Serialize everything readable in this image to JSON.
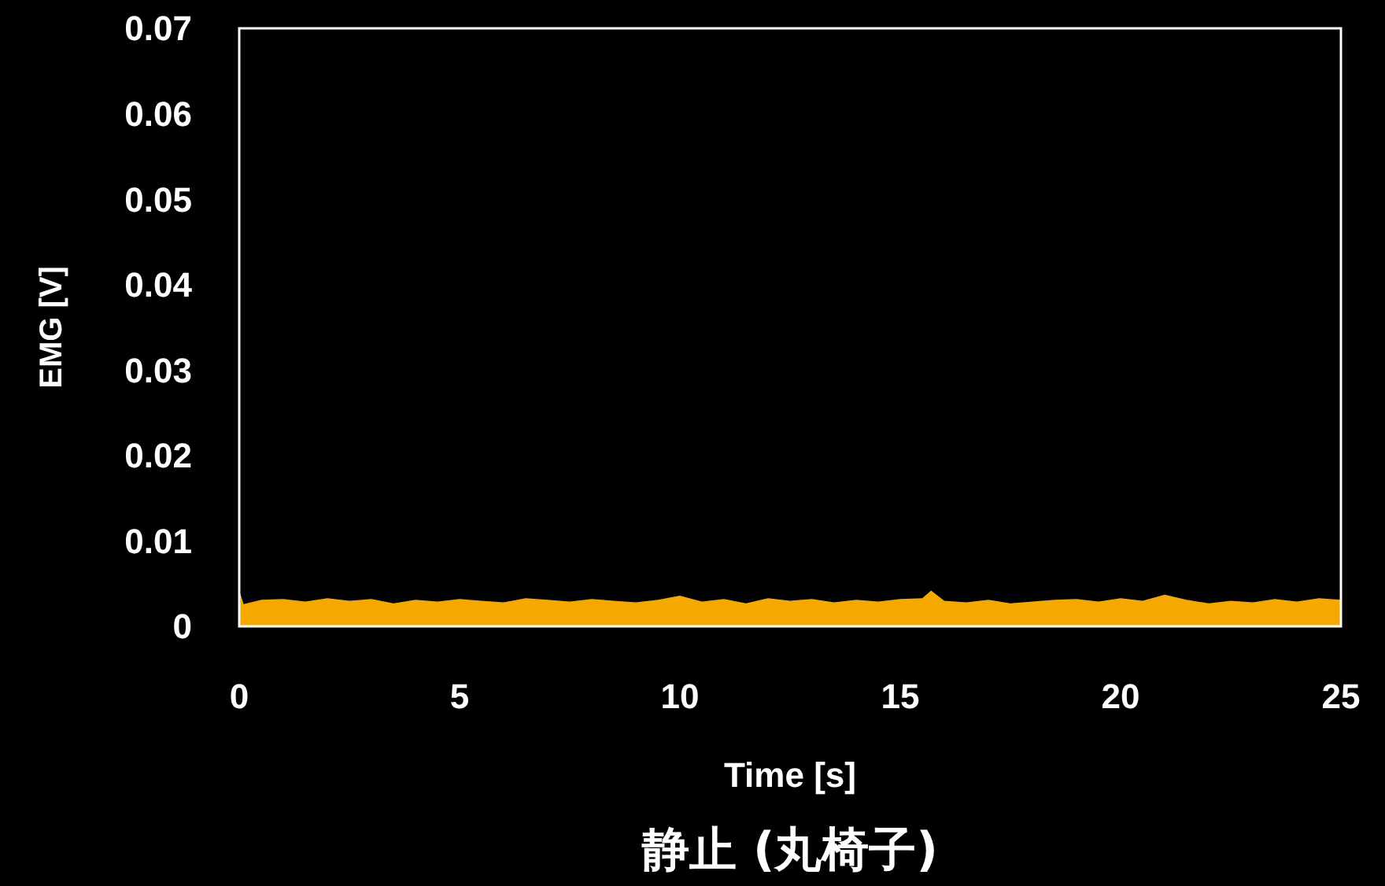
{
  "chart_data": {
    "type": "area",
    "title": "静止 (丸椅子)",
    "xlabel": "Time [s]",
    "ylabel": "EMG [V]",
    "x": [
      0,
      0.1,
      0.5,
      1,
      1.5,
      2,
      2.5,
      3,
      3.5,
      4,
      4.5,
      5,
      5.5,
      6,
      6.5,
      7,
      7.5,
      8,
      8.5,
      9,
      9.5,
      10,
      10.5,
      11,
      11.5,
      12,
      12.5,
      13,
      13.5,
      14,
      14.5,
      15,
      15.5,
      15.7,
      16,
      16.5,
      17,
      17.5,
      18,
      18.5,
      19,
      19.5,
      20,
      20.5,
      21,
      21.5,
      22,
      22.5,
      23,
      23.5,
      24,
      24.5,
      25
    ],
    "series": [
      {
        "color": "#f5a800",
        "values": [
          0.0042,
          0.0026,
          0.0031,
          0.0032,
          0.0029,
          0.0033,
          0.003,
          0.0032,
          0.0027,
          0.0031,
          0.0029,
          0.0032,
          0.003,
          0.0028,
          0.0033,
          0.0031,
          0.0029,
          0.0032,
          0.003,
          0.0028,
          0.0031,
          0.0036,
          0.0029,
          0.0032,
          0.0027,
          0.0033,
          0.003,
          0.0032,
          0.0028,
          0.0031,
          0.0029,
          0.0032,
          0.0033,
          0.0042,
          0.003,
          0.0028,
          0.0031,
          0.0027,
          0.0029,
          0.0031,
          0.0032,
          0.0029,
          0.0033,
          0.003,
          0.0037,
          0.0031,
          0.0027,
          0.003,
          0.0028,
          0.0032,
          0.0029,
          0.0033,
          0.0031
        ]
      }
    ],
    "xlim": [
      0,
      25
    ],
    "xticks": [
      0,
      5,
      10,
      15,
      20,
      25
    ],
    "ylim": [
      0,
      0.07
    ],
    "yticks": [
      0,
      0.01,
      0.02,
      0.03,
      0.04,
      0.05,
      0.06,
      0.07
    ],
    "grid": false
  }
}
